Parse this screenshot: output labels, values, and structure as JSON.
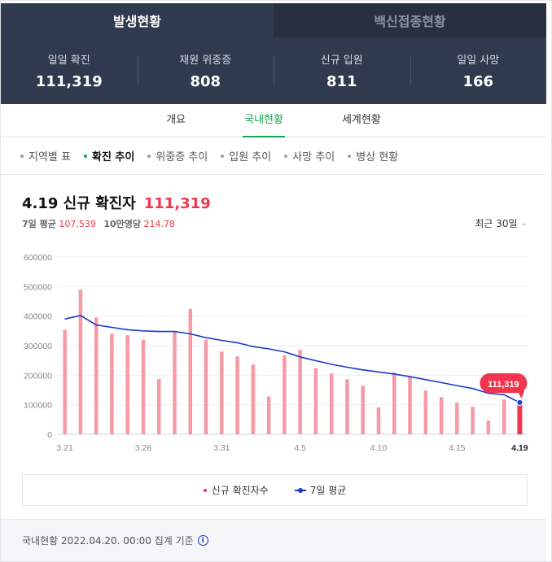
{
  "top_tabs": [
    {
      "label": "발생현황",
      "active": true
    },
    {
      "label": "백신접종현황",
      "active": false
    }
  ],
  "stats": [
    {
      "label": "일일 확진",
      "value": "111,319"
    },
    {
      "label": "재원 위중증",
      "value": "808"
    },
    {
      "label": "신규 입원",
      "value": "811"
    },
    {
      "label": "일일 사망",
      "value": "166"
    }
  ],
  "sub_tabs": [
    {
      "label": "개요",
      "active": false
    },
    {
      "label": "국내현황",
      "active": true
    },
    {
      "label": "세계현황",
      "active": false
    }
  ],
  "filters": [
    {
      "label": "지역별 표",
      "active": false
    },
    {
      "label": "확진 추이",
      "active": true
    },
    {
      "label": "위중증 추이",
      "active": false
    },
    {
      "label": "입원 추이",
      "active": false
    },
    {
      "label": "사망 추이",
      "active": false
    },
    {
      "label": "병상 현황",
      "active": false
    }
  ],
  "headline": {
    "title": "4.19 신규 확진자",
    "value": "111,319"
  },
  "subline": {
    "avg_label": "7일 평균",
    "avg_value": "107,539",
    "per_label": "10만명당",
    "per_value": "214.78"
  },
  "period": {
    "label": "최근 30일"
  },
  "legend": {
    "bars": "신규 확진자수",
    "line": "7일 평균"
  },
  "footer": {
    "text": "국내현황 2022.04.20. 00:00 집계 기준",
    "icon": "info-icon"
  },
  "colors": {
    "bar": "#f799a6",
    "bar_highlight": "#f0364e",
    "line": "#1a3ac8",
    "accent": "#11a64f",
    "header_bg": "#2f3a4e"
  },
  "chart_data": {
    "type": "bar",
    "x": [
      "3.21",
      "3.22",
      "3.23",
      "3.24",
      "3.25",
      "3.26",
      "3.27",
      "3.28",
      "3.29",
      "3.30",
      "3.31",
      "4.1",
      "4.2",
      "4.3",
      "4.4",
      "4.5",
      "4.6",
      "4.7",
      "4.8",
      "4.9",
      "4.10",
      "4.11",
      "4.12",
      "4.13",
      "4.14",
      "4.15",
      "4.16",
      "4.17",
      "4.18",
      "4.19"
    ],
    "xticks": [
      "3.21",
      "3.26",
      "3.31",
      "4.5",
      "4.10",
      "4.15",
      "4.19"
    ],
    "series": [
      {
        "name": "신규 확진자수",
        "type": "bar",
        "values": [
          354000,
          490000,
          395000,
          340000,
          335000,
          320000,
          187000,
          347000,
          424000,
          320000,
          280000,
          264000,
          236000,
          128000,
          267000,
          286000,
          224000,
          206000,
          186000,
          164000,
          91000,
          210000,
          196000,
          148000,
          126000,
          107000,
          93000,
          47000,
          118000,
          111319
        ]
      },
      {
        "name": "7일 평균",
        "type": "line",
        "values": [
          390000,
          402000,
          370000,
          362000,
          354000,
          350000,
          348000,
          348000,
          340000,
          327000,
          318000,
          310000,
          297000,
          289000,
          279000,
          262000,
          249000,
          237000,
          227000,
          218000,
          211000,
          204000,
          195000,
          185000,
          175000,
          165000,
          155000,
          139000,
          134000,
          107539
        ]
      }
    ],
    "yticks": [
      0,
      100000,
      200000,
      300000,
      400000,
      500000,
      600000
    ],
    "ylim": [
      0,
      600000
    ],
    "highlight": {
      "label": "111,319"
    }
  }
}
